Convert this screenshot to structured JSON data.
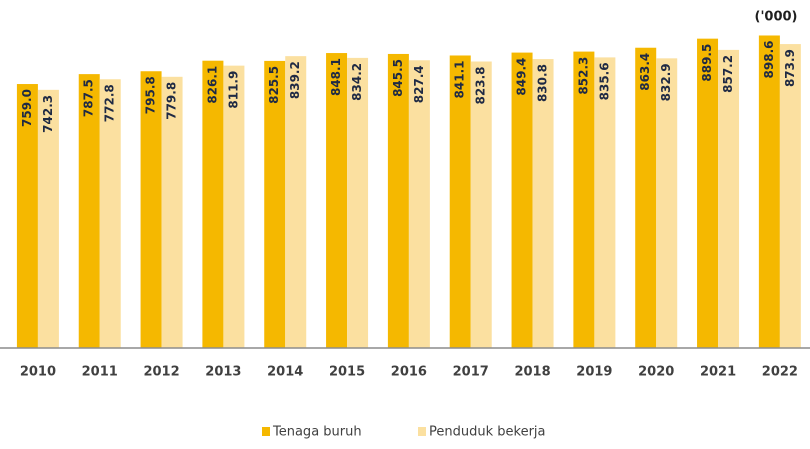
{
  "chart_data": {
    "type": "bar",
    "annotation": "('000)",
    "categories": [
      "2010",
      "2011",
      "2012",
      "2013",
      "2014",
      "2015",
      "2016",
      "2017",
      "2018",
      "2019",
      "2020",
      "2021",
      "2022"
    ],
    "series": [
      {
        "name": "Tenaga buruh",
        "color": "#f5b800",
        "values": [
          759.0,
          787.5,
          795.8,
          826.1,
          825.5,
          848.1,
          845.5,
          841.1,
          849.4,
          852.3,
          863.4,
          889.5,
          898.6
        ],
        "value_labels": [
          "759.0",
          "787.5",
          "795.8",
          "826.1",
          "825.5",
          "848.1",
          "845.5",
          "841.1",
          "849.4",
          "852.3",
          "863.4",
          "889.5",
          "898.6"
        ]
      },
      {
        "name": "Penduduk bekerja",
        "color": "#fbe0a0",
        "values": [
          742.3,
          772.8,
          779.8,
          811.9,
          839.2,
          834.2,
          827.4,
          823.8,
          830.8,
          835.6,
          832.9,
          857.2,
          873.9
        ],
        "value_labels": [
          "742.3",
          "772.8",
          "779.8",
          "811.9",
          "839.2",
          "834.2",
          "827.4",
          "823.8",
          "830.8",
          "835.6",
          "832.9",
          "857.2",
          "873.9"
        ]
      }
    ],
    "ylim": [
      0,
      900
    ],
    "legend": "bottom"
  }
}
